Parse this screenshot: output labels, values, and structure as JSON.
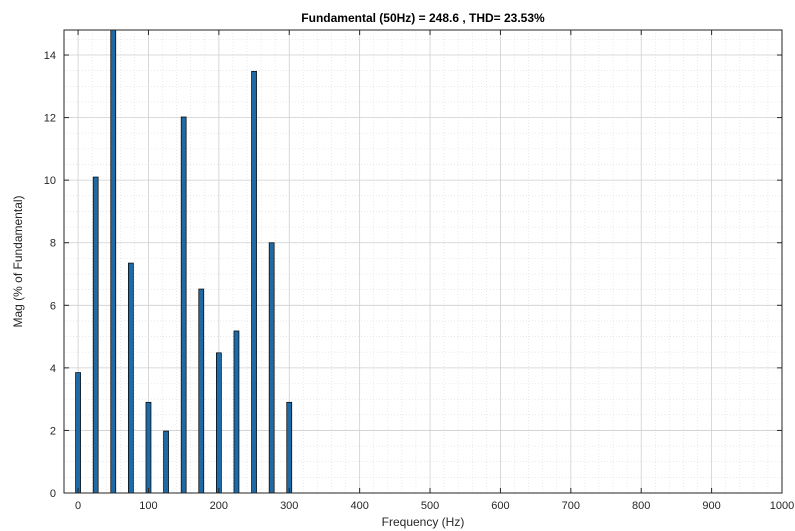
{
  "chart_data": {
    "type": "bar",
    "title": "Fundamental (50Hz) = 248.6 , THD= 23.53%",
    "xlabel": "Frequency (Hz)",
    "ylabel": "Mag (% of Fundamental)",
    "xlim": [
      -20,
      1000
    ],
    "ylim": [
      0,
      14.8
    ],
    "xticks": [
      0,
      100,
      200,
      300,
      400,
      500,
      600,
      700,
      800,
      900,
      1000
    ],
    "yticks": [
      0,
      2,
      4,
      6,
      8,
      10,
      12,
      14
    ],
    "grid": true,
    "minor_grid": true,
    "bar_color": "#1f6aa5",
    "bar_edge_color": "#000000",
    "x": [
      0,
      25,
      50,
      75,
      100,
      125,
      150,
      175,
      200,
      225,
      250,
      275,
      300
    ],
    "values": [
      3.85,
      10.1,
      14.8,
      7.35,
      2.9,
      1.98,
      12.02,
      6.52,
      4.48,
      5.18,
      13.48,
      8.0,
      2.9
    ]
  }
}
